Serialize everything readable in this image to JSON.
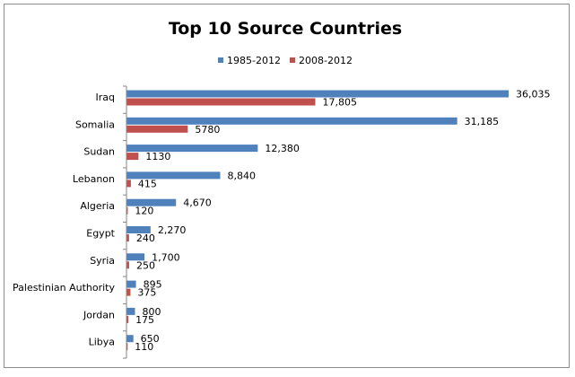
{
  "chart_data": {
    "type": "bar",
    "orientation": "horizontal",
    "title": "Top 10 Source Countries",
    "categories": [
      "Iraq",
      "Somalia",
      "Sudan",
      "Lebanon",
      "Algeria",
      "Egypt",
      "Syria",
      "Palestinian Authority",
      "Jordan",
      "Libya"
    ],
    "series": [
      {
        "name": "1985-2012",
        "color": "#4f81bd",
        "values": [
          36035,
          31185,
          12380,
          8840,
          4670,
          2270,
          1700,
          895,
          800,
          650
        ],
        "labels": [
          "36,035",
          "31,185",
          "12,380",
          "8,840",
          "4,670",
          "2,270",
          "1,700",
          "895",
          "800",
          "650"
        ]
      },
      {
        "name": "2008-2012",
        "color": "#c0504d",
        "values": [
          17805,
          5780,
          1130,
          415,
          120,
          240,
          250,
          375,
          175,
          110
        ],
        "labels": [
          "17,805",
          "5780",
          "1130",
          "415",
          "120",
          "240",
          "250",
          "375",
          "175",
          "110"
        ]
      }
    ],
    "xlim": [
      0,
      36035
    ],
    "grid": false,
    "legend": "top-center",
    "axis_line_color": "#868686"
  }
}
